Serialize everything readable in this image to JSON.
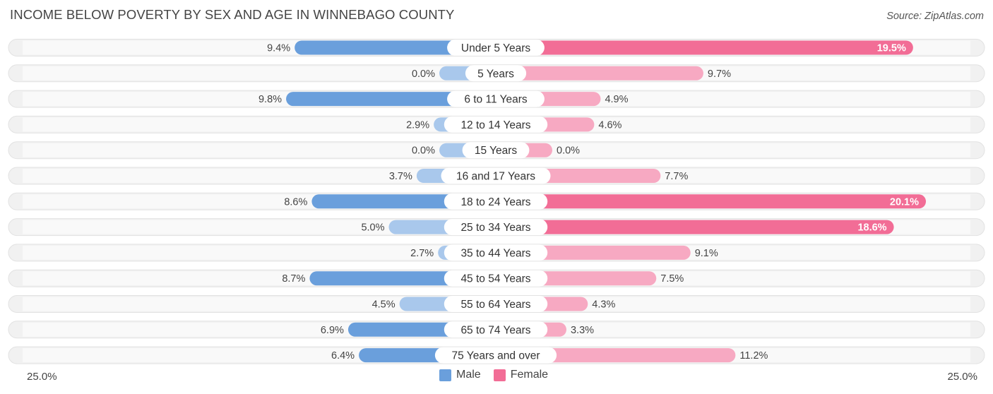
{
  "title": "INCOME BELOW POVERTY BY SEX AND AGE IN WINNEBAGO COUNTY",
  "source": "Source: ZipAtlas.com",
  "colors": {
    "male_dark": "#6a9fdc",
    "male_light": "#a9c8ec",
    "female_dark": "#f26d96",
    "female_light": "#f7a9c2",
    "row_bg": "#f1f1f1"
  },
  "axis": {
    "left_label": "25.0%",
    "right_label": "25.0%"
  },
  "legend": {
    "male": "Male",
    "female": "Female"
  },
  "chart_data": {
    "type": "bar",
    "orientation": "horizontal-diverging",
    "title": "INCOME BELOW POVERTY BY SEX AND AGE IN WINNEBAGO COUNTY",
    "xlim": [
      -25,
      25
    ],
    "categories": [
      "Under 5 Years",
      "5 Years",
      "6 to 11 Years",
      "12 to 14 Years",
      "15 Years",
      "16 and 17 Years",
      "18 to 24 Years",
      "25 to 34 Years",
      "35 to 44 Years",
      "45 to 54 Years",
      "55 to 64 Years",
      "65 to 74 Years",
      "75 Years and over"
    ],
    "series": [
      {
        "name": "Male",
        "values": [
          9.4,
          0.0,
          9.8,
          2.9,
          0.0,
          3.7,
          8.6,
          5.0,
          2.7,
          8.7,
          4.5,
          6.9,
          6.4
        ],
        "labels": [
          "9.4%",
          "0.0%",
          "9.8%",
          "2.9%",
          "0.0%",
          "3.7%",
          "8.6%",
          "5.0%",
          "2.7%",
          "8.7%",
          "4.5%",
          "6.9%",
          "6.4%"
        ]
      },
      {
        "name": "Female",
        "values": [
          19.5,
          9.7,
          4.9,
          4.6,
          0.0,
          7.7,
          20.1,
          18.6,
          9.1,
          7.5,
          4.3,
          3.3,
          11.2
        ],
        "labels": [
          "19.5%",
          "9.7%",
          "4.9%",
          "4.6%",
          "0.0%",
          "7.7%",
          "20.1%",
          "18.6%",
          "9.1%",
          "7.5%",
          "4.3%",
          "3.3%",
          "11.2%"
        ]
      }
    ]
  }
}
